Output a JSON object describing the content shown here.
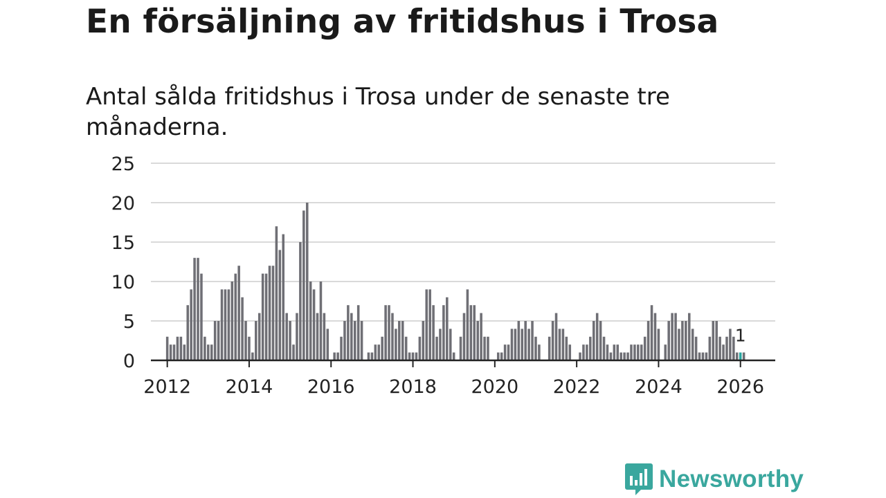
{
  "title": "En försäljning av fritidshus i Trosa",
  "subtitle": "Antal sålda fritidshus i Trosa under de senaste tre månaderna.",
  "brand": {
    "name": "Newsworthy",
    "color": "#3aa79e",
    "icon": "chat-bar-chart-icon"
  },
  "colors": {
    "bar": "#6f6f75",
    "highlight": "#2aa6a0",
    "grid": "#d9d9d9",
    "axis": "#222222",
    "text": "#222222"
  },
  "chart_data": {
    "type": "bar",
    "title": "En försäljning av fritidshus i Trosa",
    "xlabel": "",
    "ylabel": "",
    "x_start": 2012.0,
    "x_step": 0.08333,
    "xlim": [
      2011.6,
      2026.85
    ],
    "ylim": [
      0,
      25
    ],
    "yticks": [
      0,
      5,
      10,
      15,
      20,
      25
    ],
    "xticks": [
      2012,
      2014,
      2016,
      2018,
      2020,
      2022,
      2024,
      2026
    ],
    "values": [
      3,
      2,
      2,
      3,
      3,
      2,
      7,
      9,
      13,
      13,
      11,
      3,
      2,
      2,
      5,
      5,
      9,
      9,
      9,
      10,
      11,
      12,
      8,
      5,
      3,
      1,
      5,
      6,
      11,
      11,
      12,
      12,
      17,
      14,
      16,
      6,
      5,
      2,
      6,
      15,
      19,
      20,
      10,
      9,
      6,
      10,
      6,
      4,
      0,
      1,
      1,
      3,
      5,
      7,
      6,
      5,
      7,
      5,
      0,
      1,
      1,
      2,
      2,
      3,
      7,
      7,
      6,
      4,
      5,
      5,
      3,
      1,
      1,
      1,
      3,
      5,
      9,
      9,
      7,
      3,
      4,
      7,
      8,
      4,
      1,
      0,
      3,
      6,
      9,
      7,
      7,
      5,
      6,
      3,
      3,
      0,
      0,
      1,
      1,
      2,
      2,
      4,
      4,
      5,
      4,
      5,
      4,
      5,
      3,
      2,
      0,
      0,
      3,
      5,
      6,
      4,
      4,
      3,
      2,
      0,
      0,
      1,
      2,
      2,
      3,
      5,
      6,
      5,
      3,
      2,
      1,
      2,
      2,
      1,
      1,
      1,
      2,
      2,
      2,
      2,
      3,
      5,
      7,
      6,
      4,
      0,
      2,
      5,
      6,
      6,
      4,
      5,
      5,
      6,
      4,
      3,
      1,
      1,
      1,
      3,
      5,
      5,
      3,
      2,
      3,
      4,
      3,
      1,
      1,
      1
    ],
    "highlight_index": 168,
    "annotation": {
      "index": 168,
      "text": "1"
    },
    "grid": true,
    "legend": "none"
  }
}
